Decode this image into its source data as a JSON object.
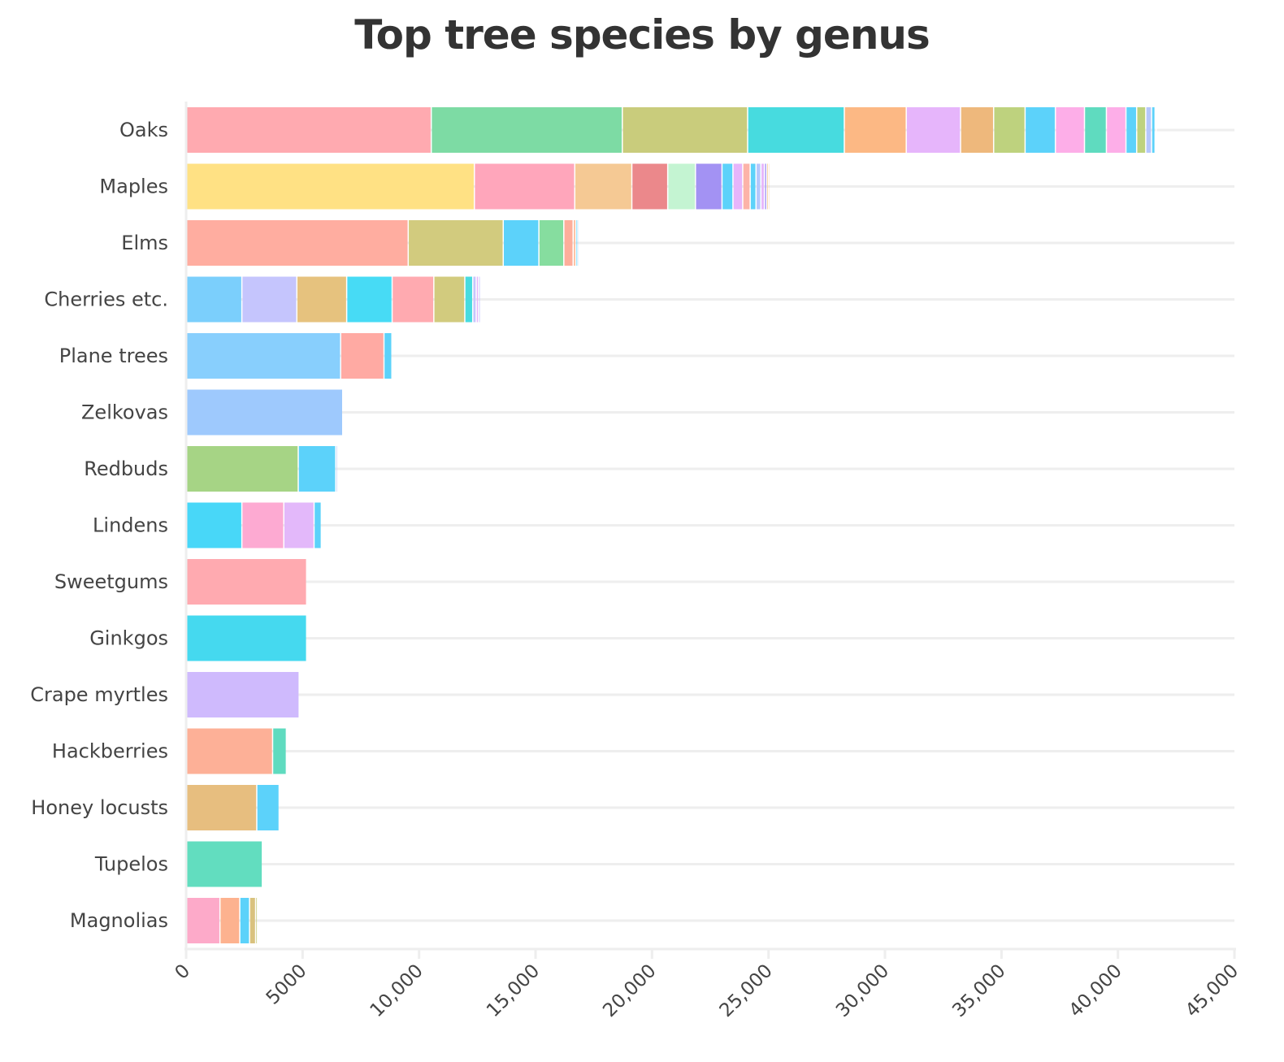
{
  "chart_data": {
    "type": "bar",
    "orientation": "horizontal",
    "stacked": true,
    "title": "Top tree species by genus",
    "xlabel": "",
    "ylabel": "",
    "xlim": [
      0,
      45000
    ],
    "xticks": [
      "0",
      "5000",
      "10,000",
      "15,000",
      "20,000",
      "25,000",
      "30,000",
      "35,000",
      "40,000",
      "45,000"
    ],
    "grid": "horizontal",
    "legend": "none",
    "categories": [
      "Oaks",
      "Maples",
      "Elms",
      "Cherries etc.",
      "Plane trees",
      "Zelkovas",
      "Redbuds",
      "Lindens",
      "Sweetgums",
      "Ginkgos",
      "Crape myrtles",
      "Hackberries",
      "Honey locusts",
      "Tupelos",
      "Magnolias"
    ],
    "stacks": [
      {
        "values": [
          10550,
          8200,
          5380,
          4150,
          2660,
          2330,
          1420,
          1350,
          1300,
          1250,
          940,
          840,
          460,
          390,
          250,
          150,
          100
        ],
        "colors": [
          "#ffaab0",
          "#7ddba4",
          "#c9cc7c",
          "#47dbdf",
          "#fcb884",
          "#e6b5fb",
          "#eeb87c",
          "#bed27e",
          "#5cd2fa",
          "#fdaee8",
          "#5fdbbf",
          "#fdaee8",
          "#5cd2fa",
          "#bed27e",
          "#b5c7fc",
          "#5cd2fa",
          "#ffffff"
        ]
      },
      {
        "values": [
          12400,
          4310,
          2450,
          1540,
          1190,
          1140,
          470,
          420,
          320,
          250,
          210,
          150,
          100,
          80,
          60
        ],
        "colors": [
          "#ffe184",
          "#ffa6bb",
          "#f5c994",
          "#eb888b",
          "#c4f4d2",
          "#a392f3",
          "#5cd2fa",
          "#e6b5fb",
          "#fcb3a9",
          "#5cd2fa",
          "#b5c7fc",
          "#e6b5fb",
          "#a392f3",
          "#f5c994",
          "#eeb87c"
        ]
      },
      {
        "values": [
          9560,
          4080,
          1530,
          1070,
          400,
          120,
          80,
          60
        ],
        "colors": [
          "#ffada0",
          "#d2cb7e",
          "#5cd2fa",
          "#86dd9f",
          "#fdae9b",
          "#fdc2a4",
          "#5cd2fa",
          "#b5c7fc"
        ]
      },
      {
        "values": [
          2420,
          2360,
          2140,
          1950,
          1790,
          1330,
          340,
          150,
          100,
          80
        ],
        "colors": [
          "#7bcffc",
          "#c5c5fd",
          "#e6c27e",
          "#47dbf5",
          "#ffaab0",
          "#d2cb7e",
          "#47dbdf",
          "#c7c6fc",
          "#e6b5fb",
          "#c5c5fd"
        ]
      },
      {
        "values": [
          6660,
          1860,
          340
        ],
        "colors": [
          "#88cffd",
          "#ffaaa3",
          "#5cd2fa"
        ]
      },
      {
        "values": [
          6750
        ],
        "colors": [
          "#9ec9fd"
        ]
      },
      {
        "values": [
          4840,
          1610,
          80
        ],
        "colors": [
          "#a6d485",
          "#5cd2fa",
          "#c5d7f9"
        ]
      },
      {
        "values": [
          2420,
          1800,
          1300,
          310
        ],
        "colors": [
          "#48d7f8",
          "#fdaad2",
          "#e3b8fa",
          "#5cd2fa"
        ]
      },
      {
        "values": [
          5200
        ],
        "colors": [
          "#ffaab0"
        ]
      },
      {
        "values": [
          5200
        ],
        "colors": [
          "#45d9ef"
        ]
      },
      {
        "values": [
          4880
        ],
        "colors": [
          "#cfbafd"
        ]
      },
      {
        "values": [
          3740,
          590
        ],
        "colors": [
          "#fdb097"
        ],
        "colors2": [
          "#5fdbbf"
        ]
      },
      {
        "values": [
          3060,
          960
        ],
        "colors": [
          "#e7be7f",
          "#5cd2fa"
        ]
      },
      {
        "values": [
          3300
        ],
        "colors": [
          "#62ddbf"
        ]
      },
      {
        "values": [
          1480,
          850,
          420,
          260,
          80
        ],
        "colors": [
          "#fdaac9",
          "#fdb28f",
          "#5cd2fa",
          "#d9c27e",
          "#c9cc7c"
        ]
      }
    ]
  }
}
